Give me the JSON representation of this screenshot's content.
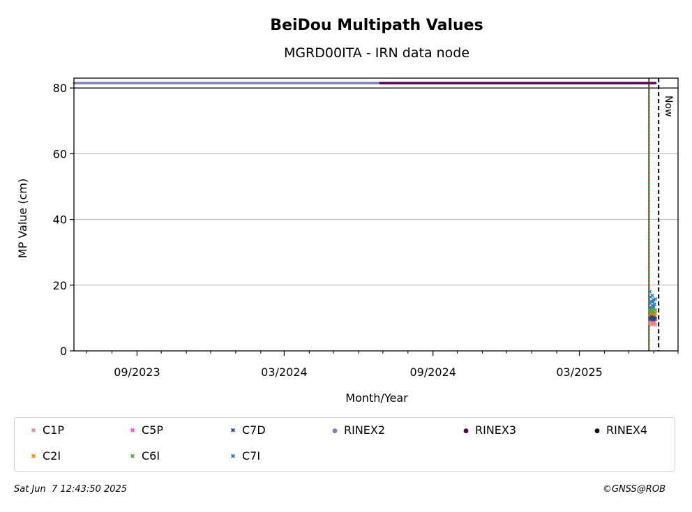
{
  "chart_data": {
    "type": "scatter",
    "title": "BeiDou Multipath Values",
    "subtitle": "MGRD00ITA - IRN data node",
    "xlabel": "Month/Year",
    "ylabel": "MP Value (cm)",
    "x_range": [
      "2023-06-15",
      "2025-07-01"
    ],
    "ylim": [
      0,
      83
    ],
    "y_ticks": [
      0,
      20,
      40,
      60,
      80
    ],
    "x_ticks": [
      {
        "date": "2023-09-01",
        "label": "09/2023"
      },
      {
        "date": "2024-03-01",
        "label": "03/2024"
      },
      {
        "date": "2024-09-01",
        "label": "09/2024"
      },
      {
        "date": "2025-03-01",
        "label": "03/2025"
      }
    ],
    "grid": "y-major",
    "reference_line_y": 80,
    "vertical_lines": [
      {
        "date": "2025-05-26",
        "style": "solid",
        "color": "#008000"
      },
      {
        "date": "2025-05-26",
        "style": "dotted",
        "color": "#cc0000"
      },
      {
        "date": "2025-06-07",
        "style": "dashed",
        "color": "#000000",
        "label": "Now"
      }
    ],
    "rinex_bars": [
      {
        "name": "RINEX2",
        "y": 81.5,
        "start": "2023-06-15",
        "end": "2024-06-28",
        "color": "#8080c0"
      },
      {
        "name": "RINEX3",
        "y": 81.5,
        "start": "2024-06-28",
        "end": "2025-06-03",
        "color": "#5a0050"
      }
    ],
    "series": [
      {
        "name": "C1P",
        "marker": "x",
        "color": "#f08080",
        "points": [
          [
            "2025-05-27",
            8.5
          ],
          [
            "2025-05-28",
            9.2
          ],
          [
            "2025-05-29",
            8.0
          ],
          [
            "2025-05-30",
            8.3
          ],
          [
            "2025-05-31",
            9.0
          ],
          [
            "2025-06-01",
            8.1
          ],
          [
            "2025-06-02",
            8.8
          ],
          [
            "2025-06-03",
            7.9
          ]
        ]
      },
      {
        "name": "C2I",
        "marker": "x",
        "color": "#ff8000",
        "points": [
          [
            "2025-05-27",
            10.5
          ],
          [
            "2025-05-28",
            11.2
          ],
          [
            "2025-05-29",
            10.8
          ],
          [
            "2025-05-30",
            11.5
          ],
          [
            "2025-05-31",
            10.2
          ],
          [
            "2025-06-01",
            11.0
          ],
          [
            "2025-06-02",
            10.6
          ],
          [
            "2025-06-03",
            11.3
          ]
        ]
      },
      {
        "name": "C5P",
        "marker": "x",
        "color": "#ff40ff",
        "points": [
          [
            "2025-05-27",
            9.6
          ],
          [
            "2025-05-29",
            10.1
          ],
          [
            "2025-05-31",
            9.4
          ],
          [
            "2025-06-02",
            9.9
          ]
        ]
      },
      {
        "name": "C6I",
        "marker": "x",
        "color": "#60a040",
        "points": [
          [
            "2025-05-27",
            12.5
          ],
          [
            "2025-05-28",
            11.8
          ],
          [
            "2025-05-29",
            12.9
          ],
          [
            "2025-05-30",
            12.2
          ],
          [
            "2025-05-31",
            11.6
          ],
          [
            "2025-06-01",
            12.7
          ],
          [
            "2025-06-02",
            12.0
          ],
          [
            "2025-06-03",
            12.4
          ]
        ]
      },
      {
        "name": "C7D",
        "marker": "x",
        "color": "#204880",
        "points": [
          [
            "2025-05-27",
            10.0
          ],
          [
            "2025-05-28",
            9.6
          ],
          [
            "2025-05-29",
            10.4
          ],
          [
            "2025-05-30",
            9.8
          ],
          [
            "2025-05-31",
            10.2
          ],
          [
            "2025-06-01",
            9.5
          ],
          [
            "2025-06-02",
            10.1
          ],
          [
            "2025-06-03",
            9.7
          ]
        ]
      },
      {
        "name": "C7I",
        "marker": "x",
        "color": "#2878b8",
        "points": [
          [
            "2025-05-27",
            14.5
          ],
          [
            "2025-05-27",
            18.0
          ],
          [
            "2025-05-28",
            13.2
          ],
          [
            "2025-05-28",
            16.4
          ],
          [
            "2025-05-29",
            15.1
          ],
          [
            "2025-05-30",
            13.8
          ],
          [
            "2025-05-30",
            16.8
          ],
          [
            "2025-05-31",
            14.9
          ],
          [
            "2025-06-01",
            15.5
          ],
          [
            "2025-06-01",
            13.4
          ],
          [
            "2025-06-02",
            14.2
          ],
          [
            "2025-06-03",
            15.8
          ]
        ]
      }
    ],
    "legend_placement": "bottom",
    "legend": [
      {
        "name": "C1P",
        "marker": "x",
        "color": "#f08080"
      },
      {
        "name": "C5P",
        "marker": "x",
        "color": "#ff40ff"
      },
      {
        "name": "C7D",
        "marker": "x",
        "color": "#204880"
      },
      {
        "name": "RINEX2",
        "marker": "dot",
        "color": "#8080c0"
      },
      {
        "name": "RINEX3",
        "marker": "dot",
        "color": "#5a0050"
      },
      {
        "name": "RINEX4",
        "marker": "dot",
        "color": "#1a0020"
      },
      {
        "name": "C2I",
        "marker": "x",
        "color": "#ff8000"
      },
      {
        "name": "C6I",
        "marker": "x",
        "color": "#60a040"
      },
      {
        "name": "C7I",
        "marker": "x",
        "color": "#2878b8"
      }
    ]
  },
  "footer": {
    "timestamp": "Sat Jun  7 12:43:50 2025",
    "copyright": "©GNSS@ROB"
  }
}
